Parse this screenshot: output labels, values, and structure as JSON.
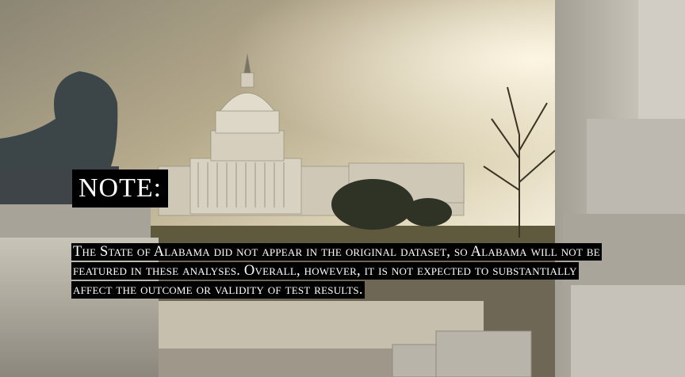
{
  "slide": {
    "background_image": "us-capitol-dome-photo",
    "note_heading": "NOTE:",
    "note_body": "The State of Alabama did not appear in the original dataset, so Alabama will not be featured in these analyses. Overall, however, it is not expected to substantially affect the outcome or validity of test results.",
    "colors": {
      "text": "#ffffff",
      "text_background": "#000000"
    }
  }
}
